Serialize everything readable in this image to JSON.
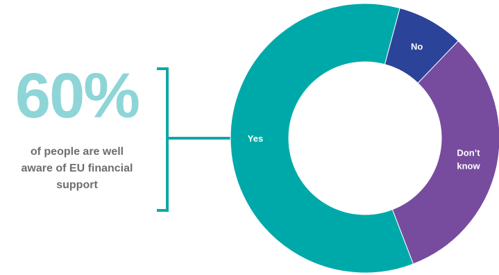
{
  "highlight": {
    "value": "60%",
    "caption_lines": [
      "of people are well",
      "aware of EU financial",
      "support"
    ]
  },
  "colors": {
    "highlight_text": "#8ed5d7",
    "caption_text": "#6e6e6e",
    "bracket": "#0fa7a7"
  },
  "chart_data": {
    "type": "pie",
    "donut": true,
    "title": "",
    "slices": [
      {
        "label": "Yes",
        "value": 60,
        "color": "#00a9a9"
      },
      {
        "label": "No",
        "value": 8,
        "color": "#2c439a"
      },
      {
        "label": "Don’t know",
        "label_lines": [
          "Don’t",
          "know"
        ],
        "value": 32,
        "color": "#774c9f"
      }
    ]
  }
}
